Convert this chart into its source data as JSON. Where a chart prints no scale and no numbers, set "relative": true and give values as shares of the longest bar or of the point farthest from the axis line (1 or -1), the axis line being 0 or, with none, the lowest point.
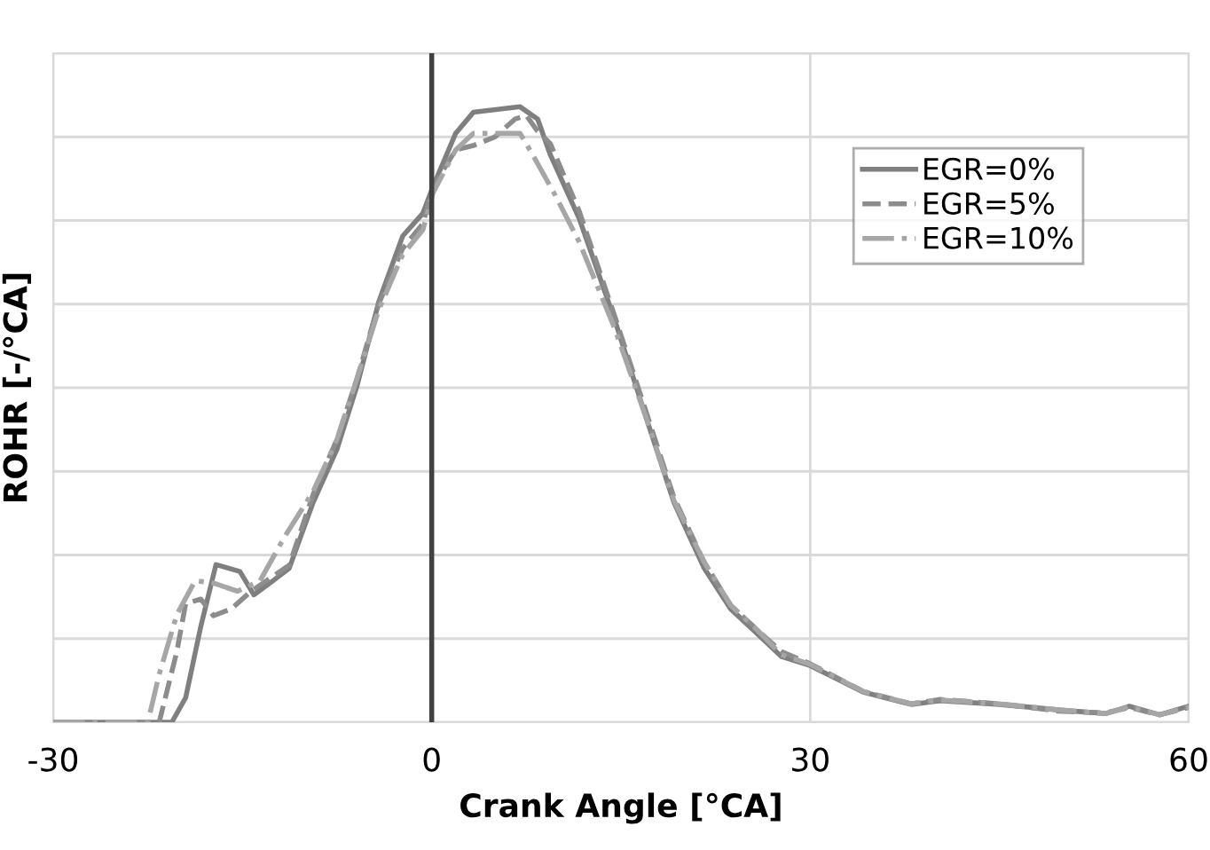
{
  "chart_data": {
    "type": "line",
    "xlabel": "Crank Angle [°CA]",
    "ylabel": "ROHR [-/°CA]",
    "relative": true,
    "xlim": [
      -30,
      60
    ],
    "xticks": [
      -30,
      0,
      30,
      60
    ],
    "grid": true,
    "legend": "top right",
    "tick_labels": "x",
    "ref_lines": [
      {
        "axis": "x",
        "value": 0,
        "color": "#404040"
      }
    ],
    "series": [
      {
        "name": "EGR=0%",
        "color": "#7f7f7f",
        "line_style": "solid",
        "x": [
          -30,
          -20.6,
          -19.5,
          -18.3,
          -17.1,
          -15.2,
          -14.1,
          -12.7,
          -11.3,
          -9.4,
          -7.5,
          -5.9,
          -4.2,
          -2.3,
          -0.7,
          0.1,
          1.9,
          3.3,
          7.0,
          8.4,
          9.4,
          11.7,
          14.5,
          16.9,
          19.2,
          21.6,
          23.7,
          25.8,
          27.7,
          30.0,
          34.2,
          38.0,
          40.3,
          45.0,
          49.7,
          53.4,
          55.3,
          57.7,
          60
        ],
        "values": [
          0,
          0,
          0.04,
          0.156,
          0.256,
          0.245,
          0.207,
          0.228,
          0.25,
          0.357,
          0.444,
          0.548,
          0.683,
          0.79,
          0.827,
          0.87,
          0.957,
          0.991,
          1.0,
          0.98,
          0.922,
          0.818,
          0.654,
          0.501,
          0.357,
          0.25,
          0.184,
          0.144,
          0.107,
          0.092,
          0.049,
          0.029,
          0.035,
          0.029,
          0.02,
          0.014,
          0.026,
          0.012,
          0.026
        ]
      },
      {
        "name": "EGR=5%",
        "color": "#8c8c8c",
        "line_style": "dashed",
        "x": [
          -30,
          -21.6,
          -20.2,
          -19.5,
          -18.3,
          -17.3,
          -15.9,
          -14.3,
          -11.3,
          -9.4,
          -7.5,
          -5.9,
          -4.2,
          -2.3,
          -0.7,
          0.1,
          1.9,
          3.3,
          5.0,
          6.6,
          7.5,
          8.4,
          9.4,
          11.7,
          14.5,
          16.9,
          19.2,
          21.6,
          23.7,
          25.8,
          27.7,
          30.0,
          34.2,
          38.0,
          40.3,
          45.0,
          49.7,
          53.4,
          55.3,
          57.7,
          60
        ],
        "values": [
          0,
          0,
          0.115,
          0.193,
          0.2,
          0.173,
          0.184,
          0.213,
          0.255,
          0.37,
          0.46,
          0.56,
          0.68,
          0.77,
          0.81,
          0.87,
          0.93,
          0.937,
          0.951,
          0.98,
          0.986,
          0.96,
          0.94,
          0.83,
          0.66,
          0.51,
          0.365,
          0.26,
          0.19,
          0.15,
          0.115,
          0.095,
          0.05,
          0.03,
          0.037,
          0.03,
          0.018,
          0.015,
          0.024,
          0.012,
          0.024
        ]
      },
      {
        "name": "EGR=10%",
        "color": "#a6a6a6",
        "line_style": "dashdot",
        "x": [
          -30,
          -22.5,
          -21.6,
          -20.2,
          -18.75,
          -17.3,
          -15.4,
          -13.6,
          -11.7,
          -9.4,
          -7.5,
          -5.9,
          -4.2,
          -2.3,
          -0.7,
          0.1,
          1.9,
          3.3,
          5.0,
          7.0,
          8.0,
          9.8,
          11.7,
          14.5,
          16.9,
          19.2,
          21.6,
          23.7,
          25.8,
          27.7,
          30.0,
          34.2,
          38.0,
          40.3,
          45.0,
          49.7,
          53.4,
          55.3,
          57.7,
          60
        ],
        "values": [
          0,
          0,
          0.078,
          0.175,
          0.23,
          0.226,
          0.213,
          0.23,
          0.3,
          0.375,
          0.46,
          0.56,
          0.67,
          0.76,
          0.8,
          0.86,
          0.93,
          0.957,
          0.957,
          0.957,
          0.922,
          0.856,
          0.78,
          0.64,
          0.5,
          0.36,
          0.26,
          0.19,
          0.15,
          0.11,
          0.094,
          0.05,
          0.03,
          0.036,
          0.03,
          0.02,
          0.014,
          0.025,
          0.012,
          0.025
        ]
      }
    ]
  }
}
